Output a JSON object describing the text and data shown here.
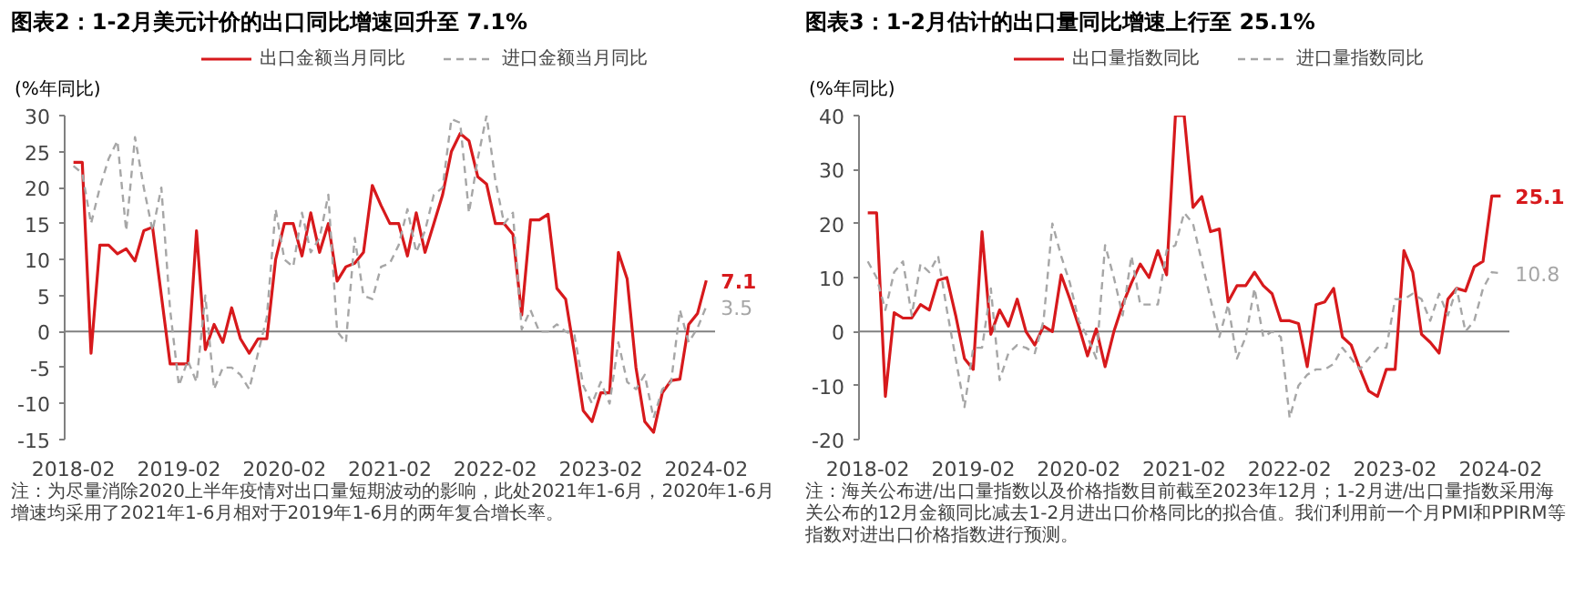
{
  "chart_data": [
    {
      "type": "line",
      "title": "图表2：1-2月美元计价的出口同比增速回升至 7.1%",
      "ylabel": "(%年同比)",
      "x": [
        "2018-02",
        "2018-03",
        "2018-04",
        "2018-05",
        "2018-06",
        "2018-07",
        "2018-08",
        "2018-09",
        "2018-10",
        "2018-11",
        "2018-12",
        "2019-01",
        "2019-02",
        "2019-03",
        "2019-04",
        "2019-05",
        "2019-06",
        "2019-07",
        "2019-08",
        "2019-09",
        "2019-10",
        "2019-11",
        "2019-12",
        "2020-01",
        "2020-02",
        "2020-03",
        "2020-04",
        "2020-05",
        "2020-06",
        "2020-07",
        "2020-08",
        "2020-09",
        "2020-10",
        "2020-11",
        "2020-12",
        "2021-01",
        "2021-02",
        "2021-03",
        "2021-04",
        "2021-05",
        "2021-06",
        "2021-07",
        "2021-08",
        "2021-09",
        "2021-10",
        "2021-11",
        "2021-12",
        "2022-01",
        "2022-02",
        "2022-03",
        "2022-04",
        "2022-05",
        "2022-06",
        "2022-07",
        "2022-08",
        "2022-09",
        "2022-10",
        "2022-11",
        "2022-12",
        "2023-01",
        "2023-02",
        "2023-03",
        "2023-04",
        "2023-05",
        "2023-06",
        "2023-07",
        "2023-08",
        "2023-09",
        "2023-10",
        "2023-11",
        "2023-12",
        "2024-01",
        "2024-02"
      ],
      "series": [
        {
          "name": "出口金额当月同比",
          "color": "#d7191c",
          "line_style": "solid",
          "values": [
            23.5,
            23.5,
            -3,
            12,
            12,
            10.8,
            11.5,
            9.8,
            14,
            14.5,
            5,
            -4.5,
            -4.5,
            -4.5,
            14,
            -2.5,
            1,
            -1.5,
            3.3,
            -1,
            -3,
            -1,
            -1,
            10,
            15,
            15,
            10.5,
            16.5,
            11,
            15,
            7,
            9,
            9.5,
            11,
            20.3,
            17.5,
            15,
            15,
            10.5,
            16.5,
            11,
            15,
            19,
            25,
            27.5,
            26.5,
            21.5,
            20.5,
            15,
            15,
            13.5,
            2.3,
            15.5,
            15.5,
            16.3,
            6,
            4.5,
            -3,
            -11,
            -12.5,
            -8.5,
            -8.5,
            11,
            7.3,
            -5,
            -12.5,
            -14,
            -8.5,
            -6.8,
            -6.6,
            1,
            2.5,
            7.1
          ],
          "value_labels": [
            null,
            null,
            null,
            null,
            null,
            null,
            null,
            null,
            null,
            null,
            null,
            null,
            null,
            null,
            null,
            null,
            null,
            null,
            null,
            null,
            null,
            null,
            null,
            null,
            null,
            null,
            null,
            null,
            null,
            null,
            null,
            null,
            null,
            null,
            null,
            null,
            null,
            null,
            null,
            null,
            null,
            null,
            null,
            null,
            null,
            null,
            null,
            null,
            null,
            null,
            null,
            null,
            null,
            null,
            null,
            null,
            null,
            null,
            null,
            null,
            null,
            null,
            null,
            null,
            null,
            null,
            null,
            null,
            null,
            null,
            null,
            null,
            "7.1"
          ]
        },
        {
          "name": "进口金额当月同比",
          "color": "#a6a6a6",
          "line_style": "dashed",
          "values": [
            23,
            22,
            15,
            20,
            24,
            26.5,
            14,
            27,
            20,
            14,
            20,
            3,
            -7.5,
            -4,
            -7,
            5,
            -8,
            -5,
            -5,
            -6,
            -8,
            -3,
            2,
            17,
            10,
            9,
            16.5,
            11,
            13,
            19,
            0,
            -1.5,
            13,
            5,
            4.5,
            9,
            9.5,
            12,
            17,
            11,
            14,
            19,
            20,
            29.5,
            29,
            16.5,
            24,
            30,
            21,
            15,
            16.5,
            0.3,
            3,
            0,
            0,
            1,
            0,
            -0.5,
            -7.5,
            -10,
            -7,
            -10,
            -1.5,
            -7,
            -8,
            -6,
            -12,
            -8,
            -7,
            3,
            -1.5,
            0.5,
            3.5
          ],
          "value_labels": [
            null,
            null,
            null,
            null,
            null,
            null,
            null,
            null,
            null,
            null,
            null,
            null,
            null,
            null,
            null,
            null,
            null,
            null,
            null,
            null,
            null,
            null,
            null,
            null,
            null,
            null,
            null,
            null,
            null,
            null,
            null,
            null,
            null,
            null,
            null,
            null,
            null,
            null,
            null,
            null,
            null,
            null,
            null,
            null,
            null,
            null,
            null,
            null,
            null,
            null,
            null,
            null,
            null,
            null,
            null,
            null,
            null,
            null,
            null,
            null,
            null,
            null,
            null,
            null,
            null,
            null,
            null,
            null,
            null,
            null,
            null,
            null,
            "3.5"
          ]
        }
      ],
      "xlim": [
        "2018-01",
        "2024-03"
      ],
      "xticks": [
        "2018-02",
        "2019-02",
        "2020-02",
        "2021-02",
        "2022-02",
        "2023-02",
        "2024-02"
      ],
      "ylim": [
        -15,
        30
      ],
      "yticks": [
        -15,
        -10,
        -5,
        0,
        5,
        10,
        15,
        20,
        25,
        30
      ],
      "legend": "top",
      "grid": false,
      "ref_lines": [
        {
          "axis": "y",
          "value": 0,
          "color": "#808080"
        }
      ],
      "annotations": [
        "注：为尽量消除2020上半年疫情对出口量短期波动的影响，此处2021年1-6月，2020年1-6月增速均采用了2021年1-6月相对于2019年1-6月的两年复合增长率。"
      ]
    },
    {
      "type": "line",
      "title": "图表3：1-2月估计的出口量同比增速上行至 25.1%",
      "ylabel": "(%年同比)",
      "x": [
        "2018-02",
        "2018-03",
        "2018-04",
        "2018-05",
        "2018-06",
        "2018-07",
        "2018-08",
        "2018-09",
        "2018-10",
        "2018-11",
        "2018-12",
        "2019-01",
        "2019-02",
        "2019-03",
        "2019-04",
        "2019-05",
        "2019-06",
        "2019-07",
        "2019-08",
        "2019-09",
        "2019-10",
        "2019-11",
        "2019-12",
        "2020-01",
        "2020-02",
        "2020-03",
        "2020-04",
        "2020-05",
        "2020-06",
        "2020-07",
        "2020-08",
        "2020-09",
        "2020-10",
        "2020-11",
        "2020-12",
        "2021-01",
        "2021-02",
        "2021-03",
        "2021-04",
        "2021-05",
        "2021-06",
        "2021-07",
        "2021-08",
        "2021-09",
        "2021-10",
        "2021-11",
        "2021-12",
        "2022-01",
        "2022-02",
        "2022-03",
        "2022-04",
        "2022-05",
        "2022-06",
        "2022-07",
        "2022-08",
        "2022-09",
        "2022-10",
        "2022-11",
        "2022-12",
        "2023-01",
        "2023-02",
        "2023-03",
        "2023-04",
        "2023-05",
        "2023-06",
        "2023-07",
        "2023-08",
        "2023-09",
        "2023-10",
        "2023-11",
        "2023-12",
        "2024-01",
        "2024-02"
      ],
      "series": [
        {
          "name": "出口量指数同比",
          "color": "#d7191c",
          "line_style": "solid",
          "values": [
            22,
            22,
            -12,
            3.5,
            2.5,
            2.5,
            5,
            4,
            9.5,
            10,
            3,
            -5,
            -7,
            18.5,
            -0.5,
            4,
            1,
            6,
            0,
            -2.5,
            1,
            0,
            10.5,
            6,
            1,
            -4.5,
            0.5,
            -6.5,
            0,
            5,
            9,
            12.5,
            10,
            15,
            10.5,
            40,
            40,
            23,
            25,
            18.5,
            19,
            5.5,
            8.5,
            8.5,
            11,
            8.5,
            7,
            2,
            2,
            1.5,
            -6.5,
            5,
            5.5,
            8,
            -1,
            -2.5,
            -7,
            -11,
            -12,
            -7,
            -7,
            15,
            11,
            -0.5,
            -2,
            -4,
            6,
            8,
            7.5,
            12,
            13,
            25.1,
            25.1
          ],
          "value_labels": [
            null,
            null,
            null,
            null,
            null,
            null,
            null,
            null,
            null,
            null,
            null,
            null,
            null,
            null,
            null,
            null,
            null,
            null,
            null,
            null,
            null,
            null,
            null,
            null,
            null,
            null,
            null,
            null,
            null,
            null,
            null,
            null,
            null,
            null,
            null,
            null,
            null,
            null,
            null,
            null,
            null,
            null,
            null,
            null,
            null,
            null,
            null,
            null,
            null,
            null,
            null,
            null,
            null,
            null,
            null,
            null,
            null,
            null,
            null,
            null,
            null,
            null,
            null,
            null,
            null,
            null,
            null,
            null,
            null,
            null,
            null,
            null,
            "25.1"
          ]
        },
        {
          "name": "进口量指数同比",
          "color": "#a6a6a6",
          "line_style": "dashed",
          "values": [
            13,
            10,
            4,
            11,
            13,
            3,
            12.5,
            11,
            14,
            4,
            -5,
            -14,
            -3,
            -3,
            8,
            -9,
            -4,
            -2.5,
            -3,
            -4,
            2,
            20,
            14,
            9,
            2,
            -1,
            -5,
            16,
            10,
            3,
            14,
            5,
            5,
            5,
            15,
            16,
            22,
            20,
            13,
            6,
            -1,
            5,
            -5,
            -1,
            8,
            -1,
            0,
            -1,
            -16,
            -10,
            -8,
            -7,
            -7,
            -6,
            -3,
            -5,
            -7,
            -5,
            -3,
            -3,
            6,
            6,
            7,
            6,
            2,
            7,
            3,
            8,
            0,
            2,
            8,
            11,
            10.8
          ],
          "value_labels": [
            null,
            null,
            null,
            null,
            null,
            null,
            null,
            null,
            null,
            null,
            null,
            null,
            null,
            null,
            null,
            null,
            null,
            null,
            null,
            null,
            null,
            null,
            null,
            null,
            null,
            null,
            null,
            null,
            null,
            null,
            null,
            null,
            null,
            null,
            null,
            null,
            null,
            null,
            null,
            null,
            null,
            null,
            null,
            null,
            null,
            null,
            null,
            null,
            null,
            null,
            null,
            null,
            null,
            null,
            null,
            null,
            null,
            null,
            null,
            null,
            null,
            null,
            null,
            null,
            null,
            null,
            null,
            null,
            null,
            null,
            null,
            null,
            "10.8"
          ]
        }
      ],
      "xlim": [
        "2018-01",
        "2024-03"
      ],
      "xticks": [
        "2018-02",
        "2019-02",
        "2020-02",
        "2021-02",
        "2022-02",
        "2023-02",
        "2024-02"
      ],
      "ylim": [
        -20,
        40
      ],
      "yticks": [
        -20,
        -10,
        0,
        10,
        20,
        30,
        40
      ],
      "legend": "top",
      "grid": false,
      "ref_lines": [
        {
          "axis": "y",
          "value": 0,
          "color": "#808080"
        }
      ],
      "annotations": [
        "注：海关公布进/出口量指数以及价格指数目前截至2023年12月；1-2月进/出口量指数采用海关公布的12月金额同比减去1-2月进出口价格同比的拟合值。我们利用前一个月PMI和PPIRM等指数对进出口价格指数进行预测。"
      ]
    }
  ]
}
